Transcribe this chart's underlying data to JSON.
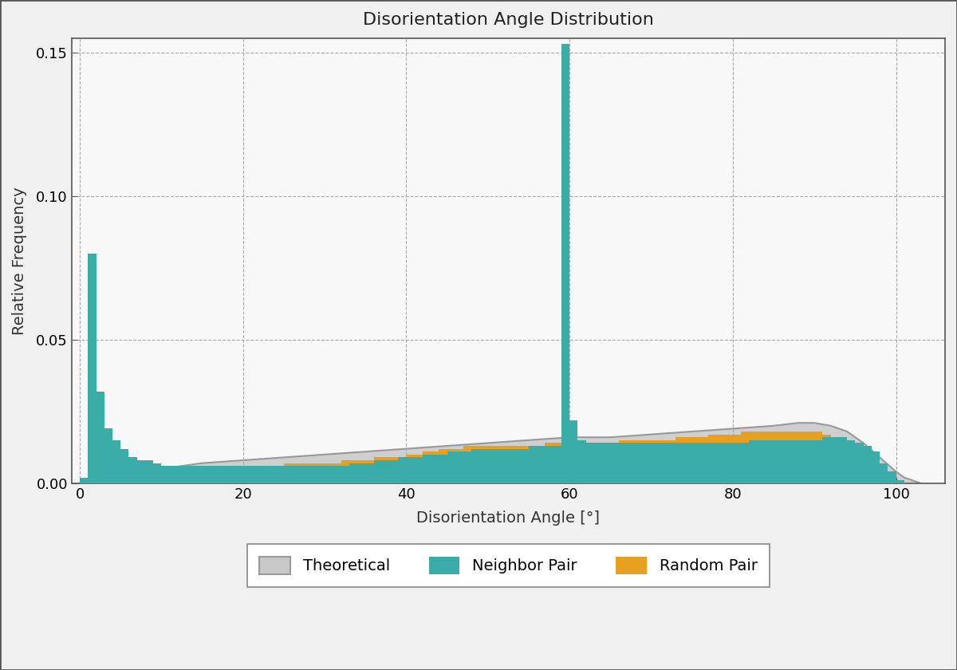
{
  "title": "Disorientation Angle Distribution",
  "xlabel": "Disorientation Angle [°]",
  "ylabel": "Relative Frequency",
  "xlim": [
    -1,
    106
  ],
  "ylim": [
    0,
    0.155
  ],
  "yticks": [
    0,
    0.05,
    0.1,
    0.15
  ],
  "xticks": [
    0,
    20,
    40,
    60,
    80,
    100
  ],
  "bg_color": "#f5f5f5",
  "plot_bg_color": "#f8f8f8",
  "grid_color": "#aaaaaa",
  "neighbor_color": "#3aada8",
  "random_color": "#e8a020",
  "theoretical_color": "#c8c8c8",
  "theoretical_edge": "#999999",
  "bin_width": 1,
  "neighbor_pair": [
    0.002,
    0.08,
    0.032,
    0.019,
    0.015,
    0.012,
    0.009,
    0.008,
    0.008,
    0.007,
    0.006,
    0.006,
    0.006,
    0.006,
    0.006,
    0.006,
    0.006,
    0.006,
    0.006,
    0.006,
    0.006,
    0.006,
    0.006,
    0.006,
    0.006,
    0.006,
    0.006,
    0.006,
    0.006,
    0.006,
    0.006,
    0.006,
    0.006,
    0.007,
    0.007,
    0.007,
    0.008,
    0.008,
    0.008,
    0.009,
    0.009,
    0.009,
    0.01,
    0.01,
    0.01,
    0.011,
    0.011,
    0.011,
    0.012,
    0.012,
    0.012,
    0.012,
    0.012,
    0.012,
    0.012,
    0.013,
    0.013,
    0.013,
    0.013,
    0.153,
    0.022,
    0.015,
    0.014,
    0.014,
    0.014,
    0.014,
    0.014,
    0.014,
    0.014,
    0.014,
    0.014,
    0.014,
    0.014,
    0.014,
    0.014,
    0.014,
    0.014,
    0.014,
    0.014,
    0.014,
    0.014,
    0.014,
    0.015,
    0.015,
    0.015,
    0.015,
    0.015,
    0.015,
    0.015,
    0.015,
    0.015,
    0.016,
    0.016,
    0.016,
    0.015,
    0.014,
    0.013,
    0.011,
    0.007,
    0.004,
    0.001,
    0.0,
    0.0,
    0.0,
    0.0
  ],
  "random_pair": [
    0.001,
    0.005,
    0.005,
    0.004,
    0.004,
    0.004,
    0.004,
    0.004,
    0.004,
    0.004,
    0.004,
    0.004,
    0.004,
    0.004,
    0.005,
    0.005,
    0.005,
    0.005,
    0.005,
    0.005,
    0.006,
    0.006,
    0.006,
    0.006,
    0.006,
    0.007,
    0.007,
    0.007,
    0.007,
    0.007,
    0.007,
    0.007,
    0.008,
    0.008,
    0.008,
    0.008,
    0.009,
    0.009,
    0.009,
    0.009,
    0.01,
    0.01,
    0.011,
    0.011,
    0.012,
    0.012,
    0.012,
    0.013,
    0.013,
    0.013,
    0.013,
    0.013,
    0.013,
    0.013,
    0.013,
    0.013,
    0.013,
    0.014,
    0.014,
    0.014,
    0.014,
    0.014,
    0.014,
    0.014,
    0.014,
    0.014,
    0.015,
    0.015,
    0.015,
    0.015,
    0.015,
    0.015,
    0.015,
    0.016,
    0.016,
    0.016,
    0.016,
    0.017,
    0.017,
    0.017,
    0.017,
    0.018,
    0.018,
    0.018,
    0.018,
    0.018,
    0.018,
    0.018,
    0.018,
    0.018,
    0.018,
    0.017,
    0.016,
    0.014,
    0.012,
    0.009,
    0.006,
    0.004,
    0.001,
    0.0,
    0.0,
    0.0,
    0.0,
    0.0,
    0.0
  ],
  "theoretical_x": [
    0.0,
    2,
    5,
    10,
    15,
    20,
    25,
    30,
    35,
    40,
    45,
    50,
    55,
    60,
    65,
    70,
    75,
    80,
    85,
    88,
    90,
    92,
    94,
    96,
    98,
    100,
    101,
    102,
    103
  ],
  "theoretical_y": [
    0.0,
    0.001,
    0.003,
    0.005,
    0.007,
    0.008,
    0.009,
    0.01,
    0.011,
    0.012,
    0.013,
    0.014,
    0.015,
    0.016,
    0.016,
    0.017,
    0.018,
    0.019,
    0.02,
    0.021,
    0.021,
    0.02,
    0.018,
    0.014,
    0.009,
    0.004,
    0.002,
    0.001,
    0.0
  ],
  "title_fontsize": 16,
  "label_fontsize": 14,
  "tick_fontsize": 13
}
